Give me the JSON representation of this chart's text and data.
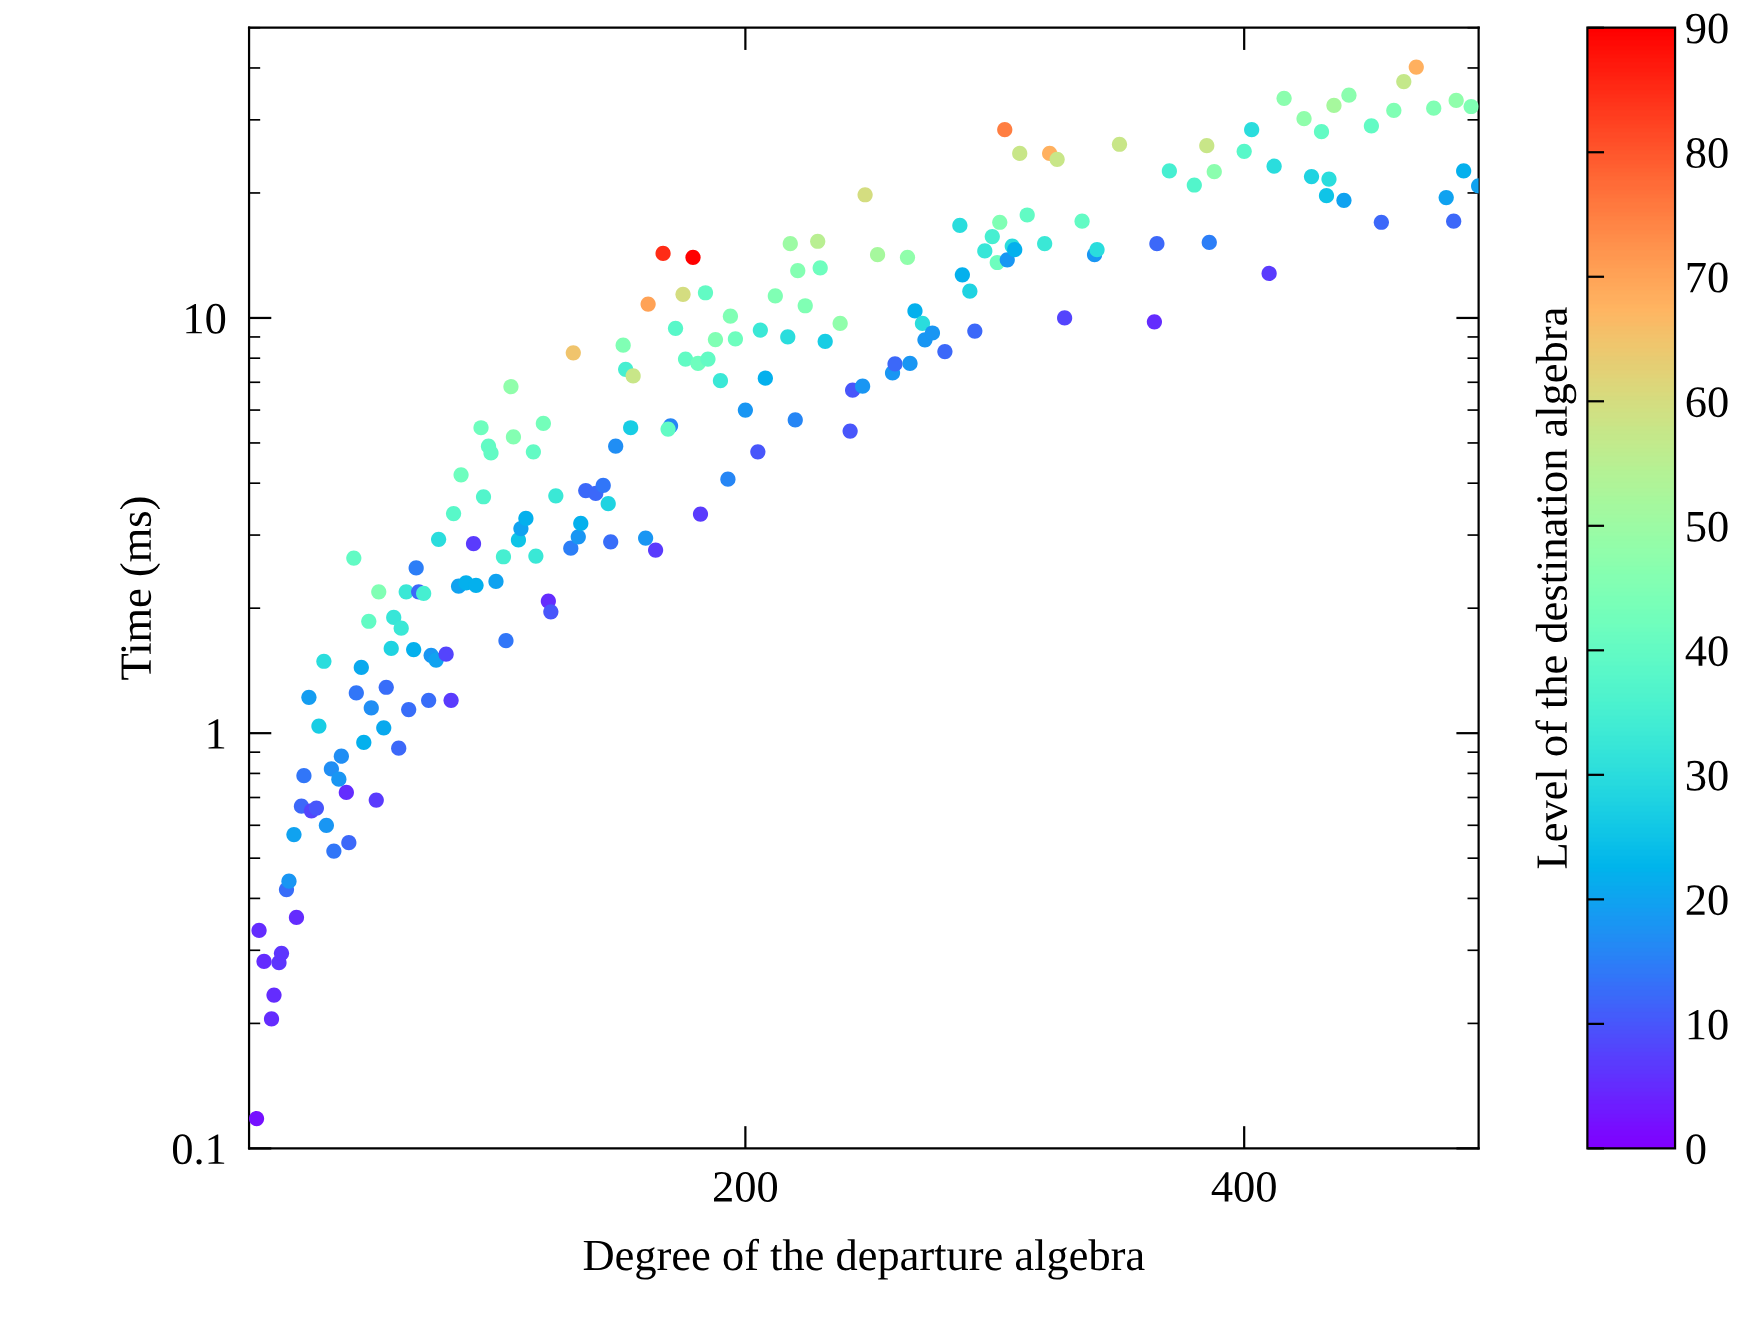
{
  "chart_data": {
    "type": "scatter",
    "xlabel": "Degree of the departure algebra",
    "ylabel": "Time (ms)",
    "clabel": "Level of the destination algebra",
    "log": "y",
    "grid": false,
    "legend": false,
    "marker": "circle",
    "xlim": [
      1,
      494
    ],
    "xticks": [
      200,
      400
    ],
    "ylim": [
      0.1,
      50
    ],
    "yticks": [
      0.1,
      1,
      10
    ],
    "clim": [
      0,
      90
    ],
    "cticks": [
      0,
      10,
      20,
      30,
      40,
      50,
      60,
      70,
      80,
      90
    ],
    "x": [
      4,
      10,
      11,
      5,
      7,
      13,
      14,
      20,
      16,
      17,
      19,
      35,
      41,
      32,
      22,
      26,
      28,
      40,
      52,
      23,
      34,
      37,
      38,
      47,
      55,
      61,
      29,
      25,
      44,
      50,
      56,
      65,
      73,
      82,
      31,
      46,
      58,
      67,
      74,
      76,
      80,
      104,
      49,
      59,
      62,
      121,
      122,
      53,
      64,
      69,
      71,
      85,
      88,
      92,
      100,
      43,
      68,
      91,
      77,
      103,
      116,
      109,
      110,
      112,
      83,
      95,
      86,
      124,
      130,
      133,
      134,
      136,
      140,
      143,
      145,
      146,
      160,
      164,
      148,
      154,
      170,
      169,
      182,
      193,
      205,
      200,
      208,
      220,
      242,
      243,
      94,
      97,
      98,
      107,
      119,
      115,
      106,
      131,
      151,
      152,
      155,
      161,
      167,
      179,
      175,
      184,
      172,
      176,
      181,
      185,
      190,
      188,
      194,
      196,
      206,
      212,
      217,
      218,
      221,
      224,
      229,
      230,
      232,
      238,
      248,
      253,
      265,
      247,
      259,
      260,
      266,
      268,
      271,
      272,
      275,
      280,
      292,
      286,
      287,
      290,
      296,
      299,
      302,
      301,
      305,
      307,
      308,
      304,
      310,
      322,
      325,
      313,
      320,
      328,
      335,
      340,
      341,
      350,
      364,
      365,
      370,
      380,
      385,
      386,
      388,
      400,
      403,
      410,
      412,
      416,
      424,
      427,
      431,
      434,
      433,
      436,
      440,
      442,
      451,
      455,
      460,
      464,
      469,
      476,
      481,
      484,
      485,
      488,
      491,
      494
    ],
    "values": [
      0.118,
      0.205,
      0.234,
      0.335,
      0.282,
      0.28,
      0.295,
      0.36,
      0.42,
      0.44,
      0.57,
      0.52,
      0.545,
      0.6,
      0.667,
      0.65,
      0.66,
      0.72,
      0.69,
      0.79,
      0.82,
      0.775,
      0.88,
      0.95,
      1.03,
      0.92,
      1.04,
      1.22,
      1.25,
      1.15,
      1.29,
      1.14,
      1.2,
      1.2,
      1.49,
      1.44,
      1.6,
      1.59,
      1.54,
      1.5,
      1.55,
      1.67,
      1.86,
      1.9,
      1.79,
      2.08,
      1.96,
      2.19,
      2.19,
      2.19,
      2.17,
      2.26,
      2.3,
      2.27,
      2.32,
      2.64,
      2.5,
      2.86,
      2.93,
      2.66,
      2.67,
      2.92,
      3.11,
      3.29,
      3.38,
      3.71,
      4.19,
      3.73,
      2.79,
      2.97,
      3.2,
      3.84,
      3.78,
      3.95,
      3.57,
      2.89,
      2.95,
      2.76,
      4.91,
      5.44,
      5.5,
      5.4,
      3.37,
      4.09,
      4.76,
      6.0,
      7.16,
      5.68,
      5.34,
      6.7,
      5.44,
      4.91,
      4.73,
      5.17,
      5.57,
      4.76,
      6.83,
      8.24,
      8.6,
      7.52,
      7.25,
      10.8,
      14.3,
      14.0,
      11.4,
      11.5,
      9.44,
      7.96,
      7.77,
      7.96,
      7.06,
      8.87,
      10.1,
      8.9,
      9.35,
      11.3,
      9.0,
      15.1,
      13.0,
      10.7,
      15.3,
      13.2,
      8.78,
      9.7,
      19.8,
      14.2,
      14.0,
      6.85,
      7.37,
      7.75,
      7.77,
      10.4,
      9.7,
      8.86,
      9.2,
      8.3,
      9.3,
      16.7,
      12.7,
      11.6,
      14.5,
      15.7,
      17.0,
      13.6,
      13.8,
      14.9,
      14.6,
      28.4,
      24.9,
      24.9,
      24.1,
      17.7,
      15.1,
      10.0,
      17.1,
      14.2,
      14.6,
      26.2,
      9.79,
      15.1,
      22.6,
      20.9,
      26.0,
      15.2,
      22.5,
      25.2,
      28.4,
      12.8,
      23.2,
      33.8,
      30.2,
      21.9,
      28.1,
      21.6,
      19.7,
      32.5,
      19.2,
      34.4,
      29.0,
      17.0,
      31.6,
      37.1,
      40.2,
      32.0,
      19.5,
      17.1,
      33.4,
      22.6,
      32.3,
      20.8
    ],
    "cvalues": [
      2,
      5,
      5,
      5,
      5,
      6,
      6,
      5,
      13,
      18,
      20,
      14,
      12,
      18,
      12,
      8,
      10,
      5,
      7,
      14,
      17,
      18,
      17,
      22,
      21,
      12,
      27,
      19,
      14,
      17,
      13,
      13,
      13,
      7,
      30,
      21,
      28,
      22,
      18,
      20,
      8,
      14,
      40,
      32,
      33,
      5,
      10,
      45,
      33,
      12,
      35,
      20,
      22,
      22,
      20,
      40,
      15,
      7,
      30,
      35,
      33,
      25,
      20,
      22,
      38,
      37,
      42,
      33,
      15,
      18,
      22,
      12,
      12,
      14,
      28,
      13,
      18,
      7,
      17,
      27,
      16,
      40,
      7,
      16,
      10,
      18,
      22,
      16,
      10,
      10,
      42,
      40,
      40,
      46,
      43,
      40,
      48,
      65,
      45,
      35,
      58,
      70,
      85,
      90,
      60,
      40,
      38,
      40,
      42,
      40,
      33,
      45,
      45,
      42,
      33,
      45,
      30,
      50,
      46,
      45,
      55,
      42,
      27,
      48,
      60,
      52,
      48,
      18,
      18,
      12,
      18,
      22,
      30,
      18,
      18,
      12,
      12,
      30,
      22,
      28,
      32,
      35,
      45,
      42,
      18,
      30,
      22,
      75,
      58,
      68,
      58,
      40,
      33,
      8,
      40,
      18,
      30,
      58,
      5,
      12,
      35,
      37,
      58,
      15,
      47,
      38,
      30,
      7,
      30,
      47,
      48,
      28,
      40,
      30,
      25,
      52,
      20,
      47,
      40,
      12,
      45,
      57,
      68,
      45,
      20,
      12,
      48,
      22,
      45,
      20
    ]
  }
}
